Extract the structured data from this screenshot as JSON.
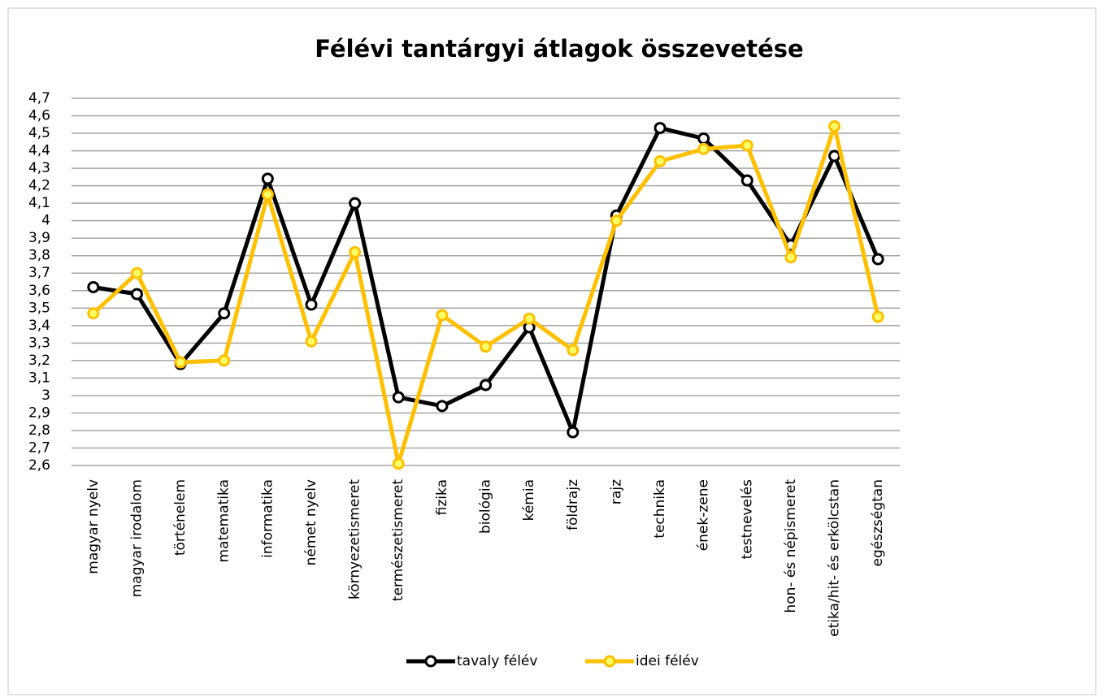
{
  "chart_data": {
    "type": "line",
    "title": "Félévi tantárgyi átlagok összevetése",
    "categories": [
      "magyar nyelv",
      "magyar irodalom",
      "történelem",
      "matematika",
      "informatika",
      "német nyelv",
      "környezetismeret",
      "természetismeret",
      "fizika",
      "biológia",
      "kémia",
      "földrajz",
      "rajz",
      "technika",
      "ének-zene",
      "testnevelés",
      "hon- és népismeret",
      "etika/hit- és erkölcstan",
      "egészségtan"
    ],
    "series": [
      {
        "name": "tavaly félév",
        "color": "#000000",
        "values": [
          3.62,
          3.58,
          3.18,
          3.47,
          4.24,
          3.52,
          4.1,
          2.99,
          2.94,
          3.06,
          3.39,
          2.79,
          4.03,
          4.53,
          4.47,
          4.23,
          3.86,
          4.37,
          3.78
        ]
      },
      {
        "name": "idei félév",
        "color": "#ffc000",
        "values": [
          3.47,
          3.7,
          3.19,
          3.2,
          4.15,
          3.31,
          3.82,
          2.61,
          3.46,
          3.28,
          3.44,
          3.26,
          4.0,
          4.34,
          4.41,
          4.43,
          3.79,
          4.54,
          3.45
        ]
      }
    ],
    "ylim": [
      2.6,
      4.7
    ],
    "yticks": [
      {
        "value": 2.6,
        "label": "2,6"
      },
      {
        "value": 2.7,
        "label": "2,7"
      },
      {
        "value": 2.8,
        "label": "2,8"
      },
      {
        "value": 2.9,
        "label": "2,9"
      },
      3,
      {
        "value": 3.1,
        "label": "3,1"
      },
      {
        "value": 3.2,
        "label": "3,2"
      },
      {
        "value": 3.3,
        "label": "3,3"
      },
      {
        "value": 3.4,
        "label": "3,4"
      },
      {
        "value": 3.5,
        "label": "3,5"
      },
      {
        "value": 3.6,
        "label": "3,6"
      },
      {
        "value": 3.7,
        "label": "3,7"
      },
      {
        "value": 3.8,
        "label": "3,8"
      },
      {
        "value": 3.9,
        "label": "3,9"
      },
      4,
      {
        "value": 4.1,
        "label": "4,1"
      },
      {
        "value": 4.2,
        "label": "4,2"
      },
      {
        "value": 4.3,
        "label": "4,3"
      },
      {
        "value": 4.4,
        "label": "4,4"
      },
      {
        "value": 4.5,
        "label": "4,5"
      },
      {
        "value": 4.6,
        "label": "4,6"
      },
      {
        "value": 4.7,
        "label": "4,7"
      }
    ],
    "grid": true,
    "legend": "bottom"
  }
}
